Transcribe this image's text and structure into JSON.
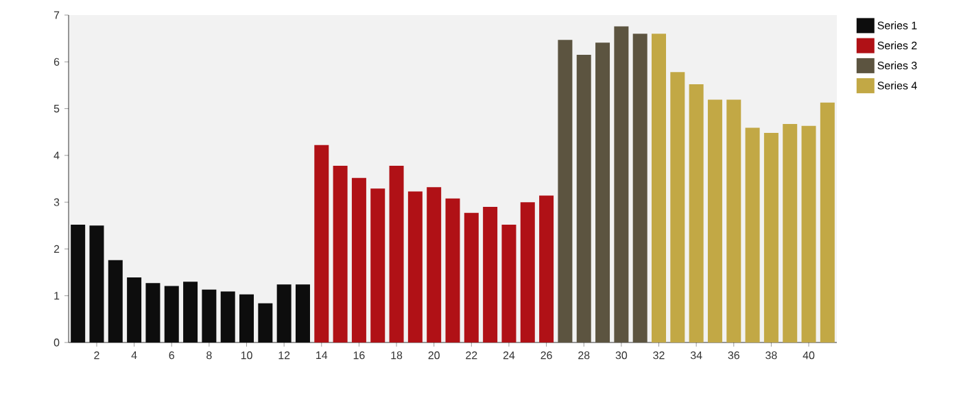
{
  "chart_data": {
    "type": "bar",
    "categories": [
      null,
      "2",
      null,
      "4",
      null,
      "6",
      null,
      "8",
      null,
      "10",
      null,
      "12",
      null,
      "14",
      null,
      "16",
      null,
      "18",
      null,
      "20",
      null,
      "22",
      null,
      "24",
      null,
      "26",
      null,
      "28",
      null,
      "30",
      null,
      "32",
      null,
      "34",
      null,
      "36",
      null,
      "38",
      null,
      "40",
      null
    ],
    "series": [
      {
        "name": "Series 1",
        "color": "#0d0d0d",
        "values": [
          2.52,
          2.5,
          1.76,
          1.39,
          1.27,
          1.21,
          1.3,
          1.13,
          1.09,
          1.03,
          0.84,
          1.24,
          1.24,
          null,
          null,
          null,
          null,
          null,
          null,
          null,
          null,
          null,
          null,
          null,
          null,
          null,
          null,
          null,
          null,
          null,
          null,
          null,
          null,
          null,
          null,
          null,
          null,
          null,
          null,
          null,
          null
        ]
      },
      {
        "name": "Series 2",
        "color": "#b01116",
        "values": [
          null,
          null,
          null,
          null,
          null,
          null,
          null,
          null,
          null,
          null,
          null,
          null,
          null,
          4.22,
          3.78,
          3.52,
          3.29,
          3.78,
          3.23,
          3.32,
          3.08,
          2.77,
          2.9,
          2.52,
          3.0,
          3.14,
          null,
          null,
          null,
          null,
          null,
          null,
          null,
          null,
          null,
          null,
          null,
          null,
          null,
          null,
          null
        ]
      },
      {
        "name": "Series 3",
        "color": "#5c5440",
        "values": [
          null,
          null,
          null,
          null,
          null,
          null,
          null,
          null,
          null,
          null,
          null,
          null,
          null,
          null,
          null,
          null,
          null,
          null,
          null,
          null,
          null,
          null,
          null,
          null,
          null,
          null,
          6.47,
          6.15,
          6.41,
          6.76,
          6.6,
          null,
          null,
          null,
          null,
          null,
          null,
          null,
          null,
          null,
          null
        ]
      },
      {
        "name": "Series 4",
        "color": "#c2a845",
        "values": [
          null,
          null,
          null,
          null,
          null,
          null,
          null,
          null,
          null,
          null,
          null,
          null,
          null,
          null,
          null,
          null,
          null,
          null,
          null,
          null,
          null,
          null,
          null,
          null,
          null,
          null,
          null,
          null,
          null,
          null,
          null,
          6.6,
          5.78,
          5.52,
          5.19,
          5.19,
          4.59,
          4.48,
          4.67,
          4.63,
          5.13
        ]
      }
    ],
    "ylim": [
      0,
      7
    ],
    "yticks": [
      0,
      1,
      2,
      3,
      4,
      5,
      6,
      7
    ],
    "grid": false,
    "legend": "right"
  }
}
